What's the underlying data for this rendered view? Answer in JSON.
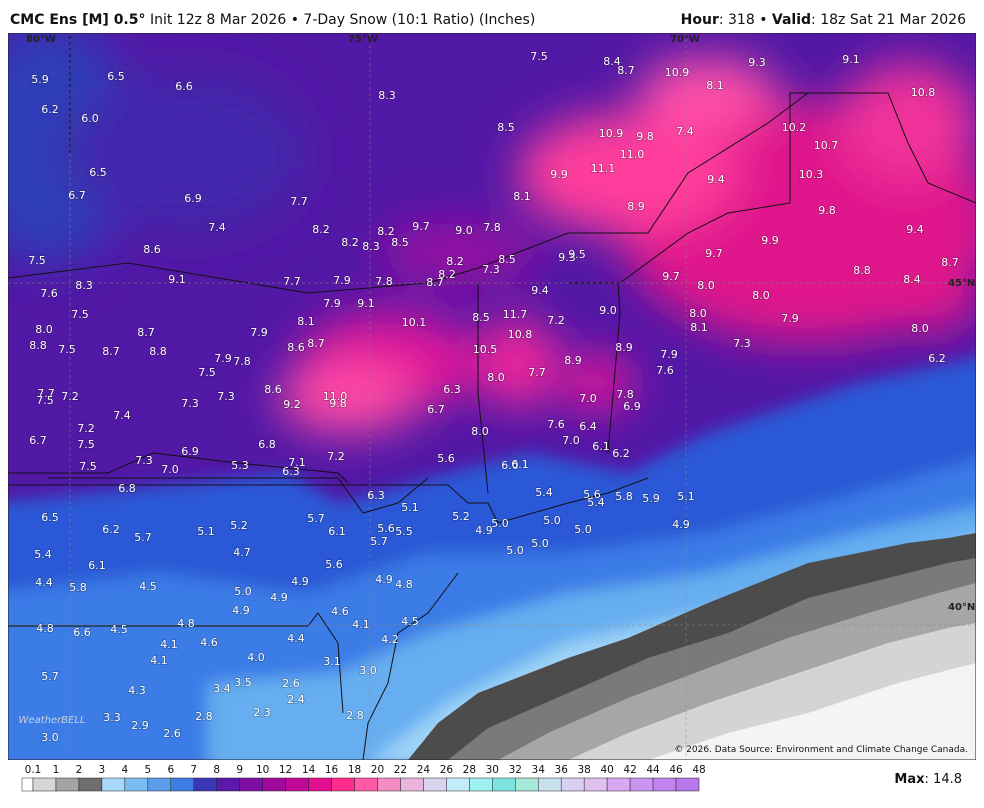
{
  "header": {
    "model": "CMC Ens [M] 0.5°",
    "description": "Init 12z 8 Mar 2026 • 7-Day Snow (10:1 Ratio) (Inches)",
    "hour_label": "Hour",
    "hour_value": ": 318 • ",
    "valid_label": "Valid",
    "valid_value": ": 18z Sat 21 Mar 2026"
  },
  "map": {
    "longitude_labels": [
      "80°W",
      "75°W",
      "70°W"
    ],
    "latitude_labels": [
      "45°N",
      "40°N"
    ],
    "logo": "WeatherBELL",
    "credit": "© 2026. Data Source: Environment and Climate Change Canada.",
    "point_labels": [
      "5.9",
      "6.5",
      "6.6",
      "7.5",
      "8.4",
      "8.7",
      "10.9",
      "9.3",
      "9.1",
      "8.1",
      "8.3",
      "10.8",
      "6.2",
      "6.0",
      "8.5",
      "10.9",
      "9.8",
      "7.4",
      "10.2",
      "10.7",
      "11.0",
      "6.5",
      "9.9",
      "11.1",
      "9.4",
      "10.3",
      "6.7",
      "6.9",
      "7.7",
      "8.1",
      "8.9",
      "9.8",
      "7.4",
      "8.2",
      "8.2",
      "9.7",
      "9.0",
      "7.8",
      "9.4",
      "8.2",
      "8.3",
      "8.5",
      "9.9",
      "8.6",
      "7.5",
      "8.2",
      "8.5",
      "9.3",
      "9.5",
      "9.7",
      "7.3",
      "8.8",
      "8.7",
      "9.1",
      "8.3",
      "7.7",
      "7.9",
      "7.8",
      "8.2",
      "8.7",
      "9.7",
      "8.4",
      "7.6",
      "9.4",
      "8.0",
      "8.0",
      "7.9",
      "9.1",
      "7.5",
      "11.7",
      "8.5",
      "7.2",
      "9.0",
      "8.0",
      "8.1",
      "10.1",
      "8.0",
      "8.7",
      "7.9",
      "10.8",
      "8.1",
      "7.9",
      "8.0",
      "8.8",
      "7.5",
      "8.7",
      "8.8",
      "8.6",
      "8.7",
      "10.5",
      "7.3",
      "8.9",
      "7.9",
      "7.8",
      "8.9",
      "7.9",
      "6.2",
      "7.5",
      "7.7",
      "8.0",
      "7.6",
      "8.6",
      "11.0",
      "9.8",
      "6.3",
      "7.7",
      "7.5",
      "7.2",
      "7.3",
      "7.3",
      "9.2",
      "7.0",
      "7.8",
      "6.9",
      "6.7",
      "7.4",
      "7.2",
      "8.0",
      "7.6",
      "6.4",
      "6.7",
      "7.5",
      "6.8",
      "7.0",
      "6.1",
      "6.9",
      "6.2",
      "7.3",
      "7.0",
      "7.5",
      "5.3",
      "7.1",
      "7.2",
      "5.6",
      "6.3",
      "6.0",
      "6.1",
      "6.8",
      "6.3",
      "5.4",
      "5.6",
      "5.4",
      "5.8",
      "5.9",
      "5.1",
      "5.1",
      "5.2",
      "6.5",
      "5.7",
      "5.2",
      "5.0",
      "6.2",
      "5.1",
      "6.1",
      "5.6",
      "5.5",
      "4.9",
      "5.0",
      "5.0",
      "4.9",
      "5.7",
      "5.7",
      "5.4",
      "4.7",
      "5.0",
      "5.0",
      "6.1",
      "5.6",
      "4.4",
      "5.8",
      "4.5",
      "5.0",
      "4.9",
      "4.9",
      "4.8",
      "4.9",
      "4.9",
      "4.6",
      "4.8",
      "4.5",
      "4.8",
      "4.1",
      "4.5",
      "6.6",
      "4.1",
      "4.6",
      "4.4",
      "4.2",
      "4.1",
      "4.0",
      "3.1",
      "3.0",
      "5.7",
      "4.3",
      "3.4",
      "3.5",
      "2.6",
      "2.4",
      "2.8",
      "2.3",
      "2.8",
      "3.3",
      "2.9",
      "3.0",
      "2.6"
    ]
  },
  "legend": {
    "ticks": [
      0.1,
      1,
      2,
      3,
      4,
      5,
      6,
      7,
      8,
      9,
      10,
      12,
      14,
      16,
      18,
      20,
      22,
      24,
      26,
      28,
      30,
      32,
      34,
      36,
      38,
      40,
      42,
      44,
      46,
      48
    ],
    "colors": [
      "#d6d6d6",
      "#a4a4a4",
      "#6e6e6e",
      "#a8d8f8",
      "#7cbcf2",
      "#5a9eea",
      "#3c7ee2",
      "#3a36b6",
      "#5c18a8",
      "#7e0ea4",
      "#a0089e",
      "#c2089a",
      "#e01090",
      "#ff2c8c",
      "#ff5aa8",
      "#f58cc4",
      "#eab4dc",
      "#d8d4f0",
      "#c4ecf8",
      "#9ef0f0",
      "#7ee4e0",
      "#a8e8d8",
      "#c8e0ec",
      "#d8d0f0",
      "#e0c0f0",
      "#d8a8f0",
      "#cc94f0",
      "#c084f0",
      "#b878ec"
    ]
  },
  "footer": {
    "max_label": "Max",
    "max_value": ": 14.8"
  }
}
